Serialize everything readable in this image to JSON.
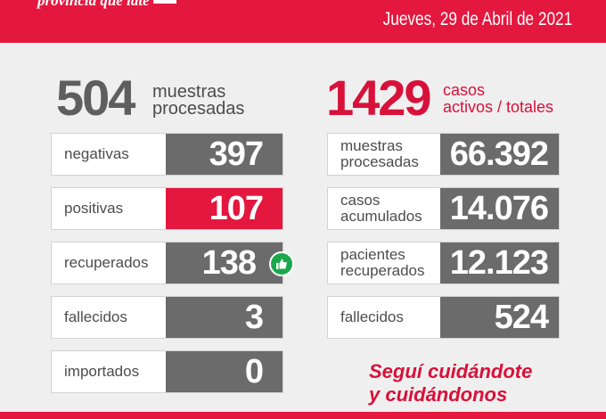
{
  "header": {
    "brand": "provincia que late",
    "date": "Jueves, 29 de Abril de 2021"
  },
  "left": {
    "big_number": "504",
    "big_label_1": "muestras",
    "big_label_2": "procesadas",
    "rows": [
      {
        "label": "negativas",
        "value": "397"
      },
      {
        "label": "positivas",
        "value": "107"
      },
      {
        "label": "recuperados",
        "value": "138"
      },
      {
        "label": "fallecidos",
        "value": "3"
      },
      {
        "label": "importados",
        "value": "0"
      }
    ]
  },
  "right": {
    "big_number": "1429",
    "big_label_1": "casos",
    "big_label_2": "activos / totales",
    "rows": [
      {
        "label_1": "muestras",
        "label_2": "procesadas",
        "value": "66.392"
      },
      {
        "label_1": "casos",
        "label_2": "acumulados",
        "value": "14.076"
      },
      {
        "label_1": "pacientes",
        "label_2": "recuperados",
        "value": "12.123"
      },
      {
        "label_1": "fallecidos",
        "label_2": "",
        "value": "524"
      }
    ]
  },
  "slogan": {
    "line_1": "Seguí cuidándote",
    "line_2": "y cuidándonos"
  },
  "colors": {
    "brand_red": "#e4173e",
    "value_gray": "#6b6b6b",
    "thumb_green": "#1aa84a"
  },
  "icons": [
    "thumbs-up-icon"
  ]
}
